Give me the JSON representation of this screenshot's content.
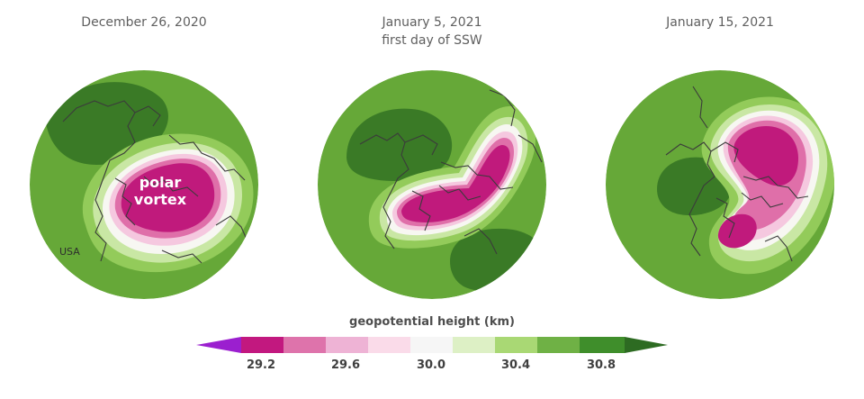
{
  "panels": [
    {
      "title": "December 26, 2020",
      "subtitle": "",
      "label_line1": "polar",
      "label_line2": "vortex",
      "usa_label": "USA"
    },
    {
      "title": "January 5, 2021",
      "subtitle": "first day of SSW"
    },
    {
      "title": "January 15, 2021",
      "subtitle": ""
    }
  ],
  "legend": {
    "title": "geopotential height",
    "unit": "(km)",
    "colors": [
      "#9b1fcf",
      "#c2187f",
      "#de73ab",
      "#eeb3d5",
      "#fadbe9",
      "#f6f6f6",
      "#ddf0c5",
      "#a9d874",
      "#6fb145",
      "#3f8e2b",
      "#2d6b22"
    ],
    "ticks": [
      "29.2",
      "29.6",
      "30.0",
      "30.4",
      "30.8"
    ]
  },
  "map_colors": {
    "green_dark": "#3a7a26",
    "green_mid": "#55972f",
    "green_base": "#66a838",
    "green_light": "#93cb5a",
    "green_pale": "#c9e7a4",
    "white": "#f7f7f2",
    "pink_pale": "#f5c8df",
    "pink_mid": "#df6fa9",
    "magenta": "#c01a7c",
    "magenta_deep": "#a8136a",
    "coast": "#3b3b3b"
  }
}
